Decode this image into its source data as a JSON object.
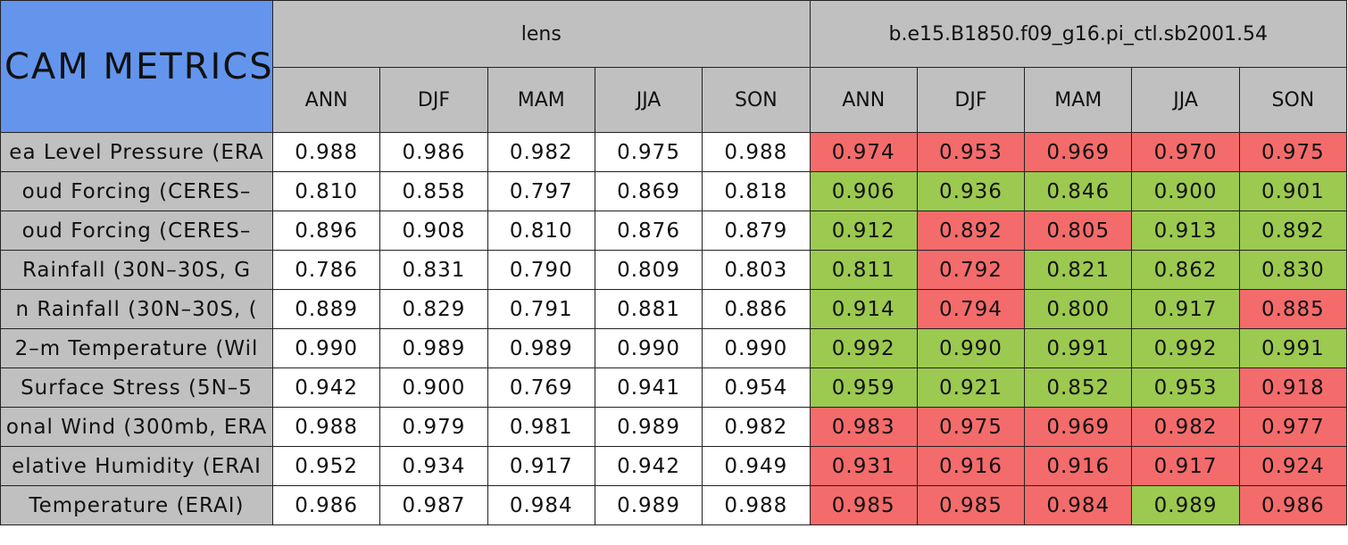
{
  "title": "CAM METRICS",
  "groups": [
    {
      "name": "lens",
      "seasons": [
        "ANN",
        "DJF",
        "MAM",
        "JJA",
        "SON"
      ]
    },
    {
      "name": "b.e15.B1850.f09_g16.pi_ctl.sb2001.54",
      "seasons": [
        "ANN",
        "DJF",
        "MAM",
        "JJA",
        "SON"
      ]
    }
  ],
  "colors": {
    "title": "#6495ed",
    "header": "#c0c0c0",
    "label": "#c0c0c0"
  },
  "rows": [
    {
      "label": "ea Level Pressure (ERA",
      "cells": [
        "0.988",
        "0.986",
        "0.982",
        "0.975",
        "0.988",
        "0.974",
        "0.953",
        "0.969",
        "0.970",
        "0.975"
      ],
      "fills": [
        "#ffffff",
        "#ffffff",
        "#ffffff",
        "#ffffff",
        "#ffffff",
        "#f46b6b",
        "#f46b6b",
        "#f46b6b",
        "#f46b6b",
        "#f46b6b"
      ]
    },
    {
      "label": "oud Forcing (CERES–",
      "cells": [
        "0.810",
        "0.858",
        "0.797",
        "0.869",
        "0.818",
        "0.906",
        "0.936",
        "0.846",
        "0.900",
        "0.901"
      ],
      "fills": [
        "#ffffff",
        "#ffffff",
        "#ffffff",
        "#ffffff",
        "#ffffff",
        "#9cc94f",
        "#9cc94f",
        "#9cc94f",
        "#9cc94f",
        "#9cc94f"
      ]
    },
    {
      "label": "oud Forcing (CERES–",
      "cells": [
        "0.896",
        "0.908",
        "0.810",
        "0.876",
        "0.879",
        "0.912",
        "0.892",
        "0.805",
        "0.913",
        "0.892"
      ],
      "fills": [
        "#ffffff",
        "#ffffff",
        "#ffffff",
        "#ffffff",
        "#ffffff",
        "#9cc94f",
        "#f46b6b",
        "#f46b6b",
        "#9cc94f",
        "#9cc94f"
      ]
    },
    {
      "label": "Rainfall (30N–30S, G",
      "cells": [
        "0.786",
        "0.831",
        "0.790",
        "0.809",
        "0.803",
        "0.811",
        "0.792",
        "0.821",
        "0.862",
        "0.830"
      ],
      "fills": [
        "#ffffff",
        "#ffffff",
        "#ffffff",
        "#ffffff",
        "#ffffff",
        "#9cc94f",
        "#f46b6b",
        "#9cc94f",
        "#9cc94f",
        "#9cc94f"
      ]
    },
    {
      "label": "n Rainfall (30N–30S, (",
      "cells": [
        "0.889",
        "0.829",
        "0.791",
        "0.881",
        "0.886",
        "0.914",
        "0.794",
        "0.800",
        "0.917",
        "0.885"
      ],
      "fills": [
        "#ffffff",
        "#ffffff",
        "#ffffff",
        "#ffffff",
        "#ffffff",
        "#9cc94f",
        "#f46b6b",
        "#9cc94f",
        "#9cc94f",
        "#f46b6b"
      ]
    },
    {
      "label": "2–m Temperature (Wil",
      "cells": [
        "0.990",
        "0.989",
        "0.989",
        "0.990",
        "0.990",
        "0.992",
        "0.990",
        "0.991",
        "0.992",
        "0.991"
      ],
      "fills": [
        "#ffffff",
        "#ffffff",
        "#ffffff",
        "#ffffff",
        "#ffffff",
        "#9cc94f",
        "#9cc94f",
        "#9cc94f",
        "#9cc94f",
        "#9cc94f"
      ]
    },
    {
      "label": "Surface Stress (5N–5",
      "cells": [
        "0.942",
        "0.900",
        "0.769",
        "0.941",
        "0.954",
        "0.959",
        "0.921",
        "0.852",
        "0.953",
        "0.918"
      ],
      "fills": [
        "#ffffff",
        "#ffffff",
        "#ffffff",
        "#ffffff",
        "#ffffff",
        "#9cc94f",
        "#9cc94f",
        "#9cc94f",
        "#9cc94f",
        "#f46b6b"
      ]
    },
    {
      "label": "onal Wind (300mb, ERA",
      "cells": [
        "0.988",
        "0.979",
        "0.981",
        "0.989",
        "0.982",
        "0.983",
        "0.975",
        "0.969",
        "0.982",
        "0.977"
      ],
      "fills": [
        "#ffffff",
        "#ffffff",
        "#ffffff",
        "#ffffff",
        "#ffffff",
        "#f46b6b",
        "#f46b6b",
        "#f46b6b",
        "#f46b6b",
        "#f46b6b"
      ]
    },
    {
      "label": "elative Humidity (ERAI",
      "cells": [
        "0.952",
        "0.934",
        "0.917",
        "0.942",
        "0.949",
        "0.931",
        "0.916",
        "0.916",
        "0.917",
        "0.924"
      ],
      "fills": [
        "#ffffff",
        "#ffffff",
        "#ffffff",
        "#ffffff",
        "#ffffff",
        "#f46b6b",
        "#f46b6b",
        "#f46b6b",
        "#f46b6b",
        "#f46b6b"
      ]
    },
    {
      "label": "Temperature (ERAI)",
      "cells": [
        "0.986",
        "0.987",
        "0.984",
        "0.989",
        "0.988",
        "0.985",
        "0.985",
        "0.984",
        "0.989",
        "0.986"
      ],
      "fills": [
        "#ffffff",
        "#ffffff",
        "#ffffff",
        "#ffffff",
        "#ffffff",
        "#f46b6b",
        "#f46b6b",
        "#f46b6b",
        "#9cc94f",
        "#f46b6b"
      ]
    }
  ]
}
